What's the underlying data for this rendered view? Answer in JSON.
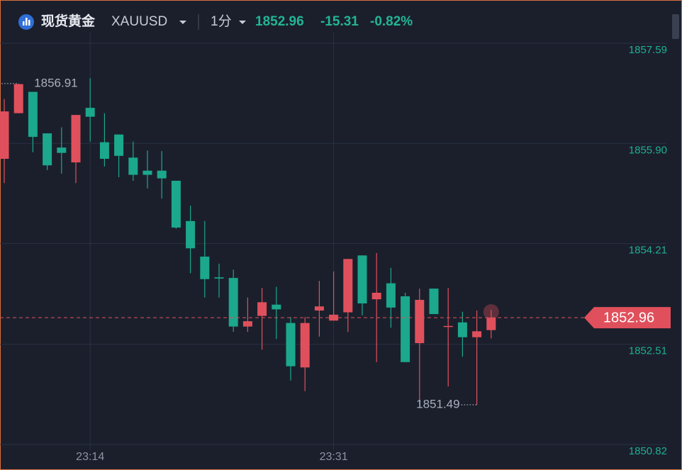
{
  "header": {
    "name": "现货黄金",
    "symbol": "XAUUSD",
    "interval": "1分",
    "change": "-15.31",
    "change_pct": "-0.82%"
  },
  "chart_data": {
    "type": "candlestick",
    "categories": [
      null,
      null,
      null,
      null,
      null,
      null,
      "23:14",
      null,
      null,
      null,
      null,
      null,
      null,
      null,
      null,
      null,
      null,
      null,
      null,
      null,
      null,
      null,
      null,
      "23:31",
      null,
      null,
      null,
      null,
      null,
      null,
      null,
      null,
      null,
      null,
      null
    ],
    "open": [
      1855.64,
      1856.41,
      1856.77,
      1856.07,
      1855.83,
      1855.58,
      1856.5,
      1855.92,
      1856.05,
      1855.66,
      1855.44,
      1855.44,
      1855.27,
      1854.59,
      1853.99,
      1853.64,
      1853.63,
      1852.81,
      1852.99,
      1853.18,
      1852.87,
      1852.12,
      1853.08,
      1852.91,
      1853.05,
      1854.01,
      1853.27,
      1853.54,
      1853.32,
      1852.53,
      1853.45,
      1852.81,
      1852.88,
      1852.63,
      1852.75
    ],
    "high": [
      1856.65,
      1856.91,
      1856.77,
      1856.07,
      1856.17,
      1856.38,
      1857.0,
      1856.41,
      1856.05,
      1855.93,
      1855.78,
      1855.77,
      1855.27,
      1854.85,
      1854.59,
      1853.87,
      1853.77,
      1853.3,
      1853.46,
      1853.48,
      1852.97,
      1852.97,
      1853.58,
      1853.74,
      1853.95,
      1854.01,
      1854.05,
      1853.8,
      1853.38,
      1853.45,
      1853.45,
      1853.46,
      1853.06,
      1853.08,
      1853.09
    ],
    "low": [
      1855.23,
      1856.41,
      1855.75,
      1855.45,
      1855.39,
      1855.23,
      1855.93,
      1855.51,
      1855.33,
      1855.27,
      1855.14,
      1854.97,
      1854.46,
      1853.71,
      1853.3,
      1853.3,
      1852.72,
      1852.72,
      1852.42,
      1852.6,
      1851.9,
      1851.72,
      1852.64,
      1852.91,
      1852.72,
      1853.0,
      1852.21,
      1852.79,
      1852.21,
      1851.5,
      1853.02,
      1851.8,
      1852.3,
      1851.49,
      1852.61
    ],
    "close": [
      1856.44,
      1856.9,
      1856.01,
      1855.53,
      1855.74,
      1856.38,
      1856.35,
      1855.64,
      1855.69,
      1855.37,
      1855.37,
      1855.31,
      1854.48,
      1854.13,
      1853.61,
      1853.62,
      1852.81,
      1852.9,
      1853.22,
      1853.1,
      1852.14,
      1852.87,
      1853.15,
      1853.01,
      1853.95,
      1853.2,
      1853.38,
      1853.13,
      1852.21,
      1853.26,
      1853.02,
      1852.82,
      1852.63,
      1852.73,
      1852.96
    ],
    "up_color": "#e0505c",
    "down_color": "#1ba88c",
    "ylim": [
      1850.82,
      1857.59
    ],
    "yticks": [
      1850.82,
      1852.51,
      1854.21,
      {
        "value": 1855.9,
        "label": "1855.90"
      },
      1857.59
    ],
    "grid": true
  }
}
